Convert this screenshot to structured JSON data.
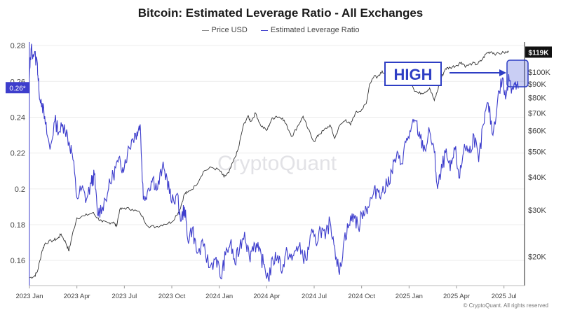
{
  "chart_data": {
    "type": "line",
    "title": "Bitcoin: Estimated Leverage Ratio - All Exchanges",
    "watermark": "CryptoQuant",
    "copyright": "© CryptoQuant. All rights reserved",
    "annotation": {
      "text": "HIGH"
    },
    "left_axis": {
      "ylim": [
        0.146,
        0.282
      ],
      "ticks": [
        0.16,
        0.18,
        0.2,
        0.22,
        0.24,
        0.26,
        0.28
      ],
      "tick_labels": [
        "0.16",
        "0.18",
        "0.2",
        "0.22",
        "0.24",
        "0.26",
        "0.28"
      ],
      "current_label": "0.26*",
      "current_value": 0.2565,
      "color": "#3d3dcc"
    },
    "right_axis": {
      "scale": "log",
      "ylim": [
        15500,
        130000
      ],
      "ticks": [
        20000,
        30000,
        40000,
        50000,
        60000,
        70000,
        80000,
        90000,
        100000
      ],
      "tick_labels": [
        "$20K",
        "$30K",
        "$40K",
        "$50K",
        "$60K",
        "$70K",
        "$80K",
        "$90K",
        "$100K"
      ],
      "current_label": "$119K",
      "current_value": 119000
    },
    "x_axis": {
      "range_months": [
        0,
        31.3
      ],
      "ticks": [
        0,
        3,
        6,
        9,
        12,
        15,
        18,
        21,
        24,
        27,
        30
      ],
      "tick_labels": [
        "2023 Jan",
        "2023 Apr",
        "2023 Jul",
        "2023 Oct",
        "2024 Jan",
        "2024 Apr",
        "2024 Jul",
        "2024 Oct",
        "2025 Jan",
        "2025 Apr",
        "2025 Jul"
      ]
    },
    "series": [
      {
        "name": "Price USD",
        "color": "#333333",
        "axis": "right",
        "points": [
          [
            0,
            16600
          ],
          [
            0.3,
            16800
          ],
          [
            0.5,
            17500
          ],
          [
            0.8,
            21000
          ],
          [
            1.0,
            22500
          ],
          [
            1.5,
            23000
          ],
          [
            1.8,
            23400
          ],
          [
            2.0,
            24300
          ],
          [
            2.3,
            22500
          ],
          [
            2.5,
            21000
          ],
          [
            2.7,
            24000
          ],
          [
            3.0,
            28000
          ],
          [
            3.5,
            28500
          ],
          [
            4.0,
            29300
          ],
          [
            4.3,
            28000
          ],
          [
            4.6,
            27000
          ],
          [
            5.0,
            26800
          ],
          [
            5.3,
            27000
          ],
          [
            5.5,
            26000
          ],
          [
            5.7,
            30000
          ],
          [
            6.0,
            30500
          ],
          [
            6.5,
            30200
          ],
          [
            7.0,
            29200
          ],
          [
            7.5,
            26000
          ],
          [
            8.0,
            25900
          ],
          [
            8.5,
            26500
          ],
          [
            9.0,
            27000
          ],
          [
            9.5,
            30000
          ],
          [
            9.8,
            34500
          ],
          [
            10.0,
            35000
          ],
          [
            10.5,
            37000
          ],
          [
            11.0,
            42000
          ],
          [
            11.5,
            43500
          ],
          [
            12.0,
            42500
          ],
          [
            12.3,
            40000
          ],
          [
            12.6,
            41500
          ],
          [
            13.0,
            47500
          ],
          [
            13.2,
            51000
          ],
          [
            13.5,
            62000
          ],
          [
            13.8,
            68000
          ],
          [
            14.0,
            65000
          ],
          [
            14.3,
            70000
          ],
          [
            14.6,
            63000
          ],
          [
            15.0,
            60000
          ],
          [
            15.3,
            66000
          ],
          [
            15.6,
            68000
          ],
          [
            16.0,
            67000
          ],
          [
            16.3,
            62000
          ],
          [
            16.6,
            57000
          ],
          [
            17.0,
            63000
          ],
          [
            17.3,
            68000
          ],
          [
            17.6,
            61000
          ],
          [
            18.0,
            54500
          ],
          [
            18.3,
            58000
          ],
          [
            18.6,
            60000
          ],
          [
            19.0,
            63000
          ],
          [
            19.3,
            56000
          ],
          [
            19.6,
            62500
          ],
          [
            20.0,
            66000
          ],
          [
            20.3,
            63000
          ],
          [
            20.6,
            70000
          ],
          [
            21.0,
            72000
          ],
          [
            21.3,
            76000
          ],
          [
            21.5,
            90000
          ],
          [
            21.8,
            97000
          ],
          [
            22.0,
            96000
          ],
          [
            22.3,
            101000
          ],
          [
            22.6,
            97000
          ],
          [
            23.0,
            93000
          ],
          [
            23.3,
            104000
          ],
          [
            23.6,
            102000
          ],
          [
            24.0,
            98000
          ],
          [
            24.3,
            86000
          ],
          [
            24.6,
            83000
          ],
          [
            25.0,
            84000
          ],
          [
            25.3,
            87000
          ],
          [
            25.6,
            78000
          ],
          [
            25.8,
            85000
          ],
          [
            26.0,
            94000
          ],
          [
            26.3,
            103000
          ],
          [
            26.6,
            104000
          ],
          [
            27.0,
            106000
          ],
          [
            27.3,
            109000
          ],
          [
            27.6,
            105000
          ],
          [
            28.0,
            108000
          ],
          [
            28.3,
            107000
          ],
          [
            28.6,
            111000
          ],
          [
            28.9,
            118000
          ],
          [
            29.2,
            119500
          ],
          [
            29.5,
            117000
          ],
          [
            30.0,
            118500
          ],
          [
            30.3,
            119000
          ]
        ]
      },
      {
        "name": "Estimated Leverage Ratio",
        "color": "#3d3dcc",
        "axis": "left",
        "points": [
          [
            0,
            0.262
          ],
          [
            0.1,
            0.278
          ],
          [
            0.3,
            0.275
          ],
          [
            0.5,
            0.27
          ],
          [
            0.6,
            0.255
          ],
          [
            0.8,
            0.248
          ],
          [
            1.0,
            0.236
          ],
          [
            1.3,
            0.222
          ],
          [
            1.6,
            0.238
          ],
          [
            1.9,
            0.232
          ],
          [
            2.2,
            0.236
          ],
          [
            2.5,
            0.226
          ],
          [
            2.7,
            0.22
          ],
          [
            3.0,
            0.195
          ],
          [
            3.3,
            0.2
          ],
          [
            3.6,
            0.194
          ],
          [
            3.9,
            0.203
          ],
          [
            4.1,
            0.208
          ],
          [
            4.3,
            0.186
          ],
          [
            4.6,
            0.19
          ],
          [
            5.0,
            0.2
          ],
          [
            5.3,
            0.208
          ],
          [
            5.6,
            0.215
          ],
          [
            5.9,
            0.212
          ],
          [
            6.2,
            0.22
          ],
          [
            6.5,
            0.228
          ],
          [
            6.8,
            0.232
          ],
          [
            7.0,
            0.236
          ],
          [
            7.2,
            0.194
          ],
          [
            7.5,
            0.2
          ],
          [
            7.8,
            0.206
          ],
          [
            8.1,
            0.2
          ],
          [
            8.4,
            0.212
          ],
          [
            8.7,
            0.206
          ],
          [
            9.0,
            0.192
          ],
          [
            9.3,
            0.197
          ],
          [
            9.6,
            0.182
          ],
          [
            9.8,
            0.19
          ],
          [
            10.0,
            0.172
          ],
          [
            10.3,
            0.178
          ],
          [
            10.6,
            0.164
          ],
          [
            11.0,
            0.168
          ],
          [
            11.4,
            0.156
          ],
          [
            11.8,
            0.162
          ],
          [
            12.1,
            0.15
          ],
          [
            12.4,
            0.163
          ],
          [
            12.7,
            0.17
          ],
          [
            13.0,
            0.158
          ],
          [
            13.3,
            0.168
          ],
          [
            13.6,
            0.176
          ],
          [
            13.9,
            0.162
          ],
          [
            14.2,
            0.17
          ],
          [
            14.5,
            0.165
          ],
          [
            14.8,
            0.158
          ],
          [
            15.1,
            0.15
          ],
          [
            15.4,
            0.16
          ],
          [
            15.7,
            0.163
          ],
          [
            16.0,
            0.155
          ],
          [
            16.3,
            0.165
          ],
          [
            16.6,
            0.16
          ],
          [
            16.9,
            0.168
          ],
          [
            17.2,
            0.165
          ],
          [
            17.5,
            0.16
          ],
          [
            17.8,
            0.175
          ],
          [
            18.1,
            0.17
          ],
          [
            18.4,
            0.178
          ],
          [
            18.7,
            0.172
          ],
          [
            19.0,
            0.182
          ],
          [
            19.3,
            0.168
          ],
          [
            19.6,
            0.152
          ],
          [
            19.9,
            0.172
          ],
          [
            20.2,
            0.18
          ],
          [
            20.5,
            0.186
          ],
          [
            20.8,
            0.178
          ],
          [
            21.1,
            0.188
          ],
          [
            21.4,
            0.19
          ],
          [
            21.7,
            0.196
          ],
          [
            22.0,
            0.2
          ],
          [
            22.3,
            0.198
          ],
          [
            22.6,
            0.202
          ],
          [
            22.9,
            0.21
          ],
          [
            23.2,
            0.218
          ],
          [
            23.5,
            0.214
          ],
          [
            23.8,
            0.226
          ],
          [
            24.1,
            0.232
          ],
          [
            24.4,
            0.238
          ],
          [
            24.7,
            0.228
          ],
          [
            25.0,
            0.222
          ],
          [
            25.3,
            0.232
          ],
          [
            25.6,
            0.22
          ],
          [
            25.8,
            0.2
          ],
          [
            26.0,
            0.208
          ],
          [
            26.3,
            0.22
          ],
          [
            26.6,
            0.21
          ],
          [
            26.9,
            0.222
          ],
          [
            27.2,
            0.206
          ],
          [
            27.5,
            0.225
          ],
          [
            27.8,
            0.22
          ],
          [
            28.1,
            0.23
          ],
          [
            28.4,
            0.215
          ],
          [
            28.7,
            0.236
          ],
          [
            29.0,
            0.248
          ],
          [
            29.3,
            0.23
          ],
          [
            29.6,
            0.25
          ],
          [
            29.9,
            0.262
          ],
          [
            30.1,
            0.25
          ],
          [
            30.3,
            0.264
          ],
          [
            30.5,
            0.256
          ],
          [
            30.7,
            0.258
          ],
          [
            30.9,
            0.256
          ]
        ]
      }
    ]
  }
}
